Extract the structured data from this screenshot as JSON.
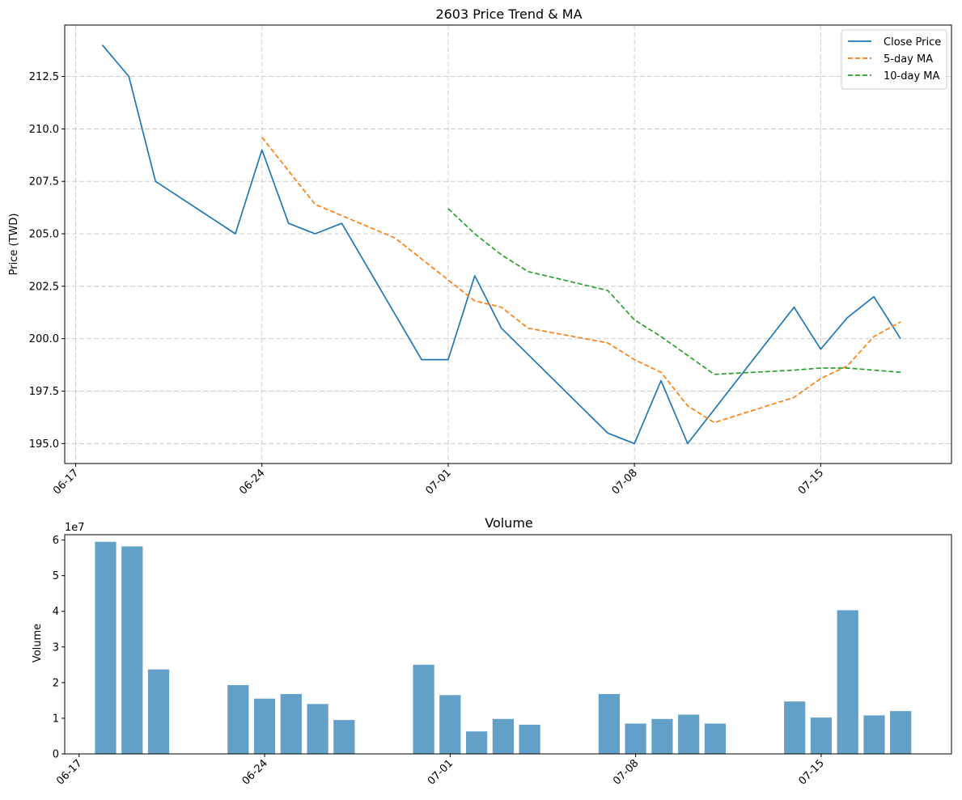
{
  "chart_data": [
    {
      "type": "line",
      "title": "2603 Price Trend & MA",
      "xlabel": "",
      "ylabel": "Price (TWD)",
      "x_tick_labels": [
        "06-17",
        "06-24",
        "07-01",
        "07-08",
        "07-15"
      ],
      "x_tick_dates": [
        "2024-06-17",
        "2024-06-24",
        "2024-07-01",
        "2024-07-08",
        "2024-07-15"
      ],
      "y_ticks": [
        195.0,
        197.5,
        200.0,
        202.5,
        205.0,
        207.5,
        210.0,
        212.5
      ],
      "y_tick_labels": [
        "195.0",
        "197.5",
        "200.0",
        "202.5",
        "205.0",
        "207.5",
        "210.0",
        "212.5"
      ],
      "xlim": [
        "2024-06-16T14:06",
        "2024-07-19T22:00"
      ],
      "ylim": [
        194.05,
        214.95
      ],
      "grid": true,
      "legend_position": "top-right",
      "series": [
        {
          "name": "Close Price",
          "color": "#1f77b4",
          "dash": "solid",
          "points": [
            [
              "2024-06-18",
              214.0
            ],
            [
              "2024-06-19",
              212.5
            ],
            [
              "2024-06-20",
              207.5
            ],
            [
              "2024-06-23",
              205.0
            ],
            [
              "2024-06-24",
              209.0
            ],
            [
              "2024-06-25",
              205.5
            ],
            [
              "2024-06-26",
              205.0
            ],
            [
              "2024-06-27",
              205.5
            ],
            [
              "2024-06-30",
              199.0
            ],
            [
              "2024-07-01",
              199.0
            ],
            [
              "2024-07-02",
              203.0
            ],
            [
              "2024-07-03",
              200.5
            ],
            [
              "2024-07-07",
              195.5
            ],
            [
              "2024-07-08",
              195.0
            ],
            [
              "2024-07-09",
              198.0
            ],
            [
              "2024-07-10",
              195.0
            ],
            [
              "2024-07-14",
              201.5
            ],
            [
              "2024-07-15",
              199.5
            ],
            [
              "2024-07-16",
              201.0
            ],
            [
              "2024-07-17",
              202.0
            ],
            [
              "2024-07-18",
              200.0
            ]
          ]
        },
        {
          "name": "5-day MA",
          "color": "#ff7f0e",
          "dash": "dashed",
          "points": [
            [
              "2024-06-24",
              209.6
            ],
            [
              "2024-06-25",
              208.0
            ],
            [
              "2024-06-26",
              206.4
            ],
            [
              "2024-06-29",
              204.8
            ],
            [
              "2024-07-01",
              202.8
            ],
            [
              "2024-07-02",
              201.8
            ],
            [
              "2024-07-03",
              201.5
            ],
            [
              "2024-07-04",
              200.5
            ],
            [
              "2024-07-07",
              199.8
            ],
            [
              "2024-07-08",
              199.0
            ],
            [
              "2024-07-09",
              198.4
            ],
            [
              "2024-07-10",
              196.8
            ],
            [
              "2024-07-11",
              196.0
            ],
            [
              "2024-07-14",
              197.2
            ],
            [
              "2024-07-15",
              198.1
            ],
            [
              "2024-07-16",
              198.7
            ],
            [
              "2024-07-17",
              200.1
            ],
            [
              "2024-07-18",
              200.8
            ]
          ]
        },
        {
          "name": "10-day MA",
          "color": "#2ca02c",
          "dash": "dashed",
          "points": [
            [
              "2024-07-01",
              206.2
            ],
            [
              "2024-07-02",
              205.0
            ],
            [
              "2024-07-03",
              204.0
            ],
            [
              "2024-07-04",
              203.2
            ],
            [
              "2024-07-07",
              202.3
            ],
            [
              "2024-07-08",
              200.9
            ],
            [
              "2024-07-09",
              200.1
            ],
            [
              "2024-07-10",
              199.2
            ],
            [
              "2024-07-11",
              198.3
            ],
            [
              "2024-07-14",
              198.5
            ],
            [
              "2024-07-15",
              198.6
            ],
            [
              "2024-07-16",
              198.6
            ],
            [
              "2024-07-17",
              198.5
            ],
            [
              "2024-07-18",
              198.4
            ]
          ]
        }
      ]
    },
    {
      "type": "bar",
      "title": "Volume",
      "xlabel": "",
      "ylabel": "Volume",
      "y_offset_label": "1e7",
      "x_tick_labels": [
        "06-17",
        "06-24",
        "07-01",
        "07-08",
        "07-15"
      ],
      "x_tick_dates": [
        "2024-06-17",
        "2024-06-24",
        "2024-07-01",
        "2024-07-08",
        "2024-07-15"
      ],
      "y_ticks": [
        0,
        1,
        2,
        3,
        4,
        5,
        6
      ],
      "y_tick_labels": [
        "0",
        "1",
        "2",
        "3",
        "4",
        "5",
        "6"
      ],
      "xlim": [
        "2024-06-16T11:00",
        "2024-07-19T22:00"
      ],
      "ylim": [
        0,
        6.15
      ],
      "grid": false,
      "bar_color": "#1f77b4",
      "bar_opacity": 0.7,
      "bar_width_days": 0.8,
      "bars": [
        [
          "2024-06-18",
          5.95
        ],
        [
          "2024-06-19",
          5.82
        ],
        [
          "2024-06-20",
          2.37
        ],
        [
          "2024-06-23",
          1.93
        ],
        [
          "2024-06-24",
          1.55
        ],
        [
          "2024-06-25",
          1.68
        ],
        [
          "2024-06-26",
          1.4
        ],
        [
          "2024-06-27",
          0.95
        ],
        [
          "2024-06-30",
          2.5
        ],
        [
          "2024-07-01",
          1.65
        ],
        [
          "2024-07-02",
          0.63
        ],
        [
          "2024-07-03",
          0.98
        ],
        [
          "2024-07-04",
          0.82
        ],
        [
          "2024-07-07",
          1.68
        ],
        [
          "2024-07-08",
          0.85
        ],
        [
          "2024-07-09",
          0.98
        ],
        [
          "2024-07-10",
          1.1
        ],
        [
          "2024-07-11",
          0.85
        ],
        [
          "2024-07-14",
          1.47
        ],
        [
          "2024-07-15",
          1.02
        ],
        [
          "2024-07-16",
          4.03
        ],
        [
          "2024-07-17",
          1.08
        ],
        [
          "2024-07-18",
          1.2
        ]
      ]
    }
  ]
}
